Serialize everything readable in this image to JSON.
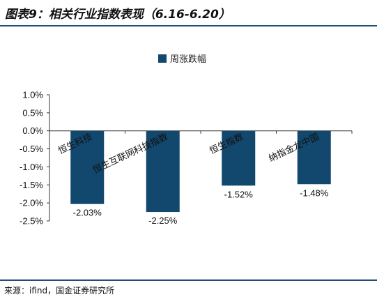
{
  "header": {
    "title": "图表9：相关行业指数表现（6.16-6.20）"
  },
  "footer": {
    "source": "来源：ifind，国金证券研究所"
  },
  "colors": {
    "bar": "#12476e",
    "rule": "#1f4e79"
  },
  "chart_data": {
    "type": "bar",
    "categories": [
      "恒生科技",
      "恒生互联网科技指数",
      "恒生指数",
      "纳指金龙中国"
    ],
    "series": [
      {
        "name": "周涨跌幅",
        "values": [
          -2.03,
          -2.25,
          -1.52,
          -1.48
        ]
      }
    ],
    "data_labels": [
      "-2.03%",
      "-2.25%",
      "-1.52%",
      "-1.48%"
    ],
    "yticks": [
      "1.0%",
      "0.5%",
      "0.0%",
      "-0.5%",
      "-1.0%",
      "-1.5%",
      "-2.0%",
      "-2.5%"
    ],
    "ylim": [
      -2.5,
      1.0
    ],
    "legend_position": "top-center",
    "grid": false
  }
}
